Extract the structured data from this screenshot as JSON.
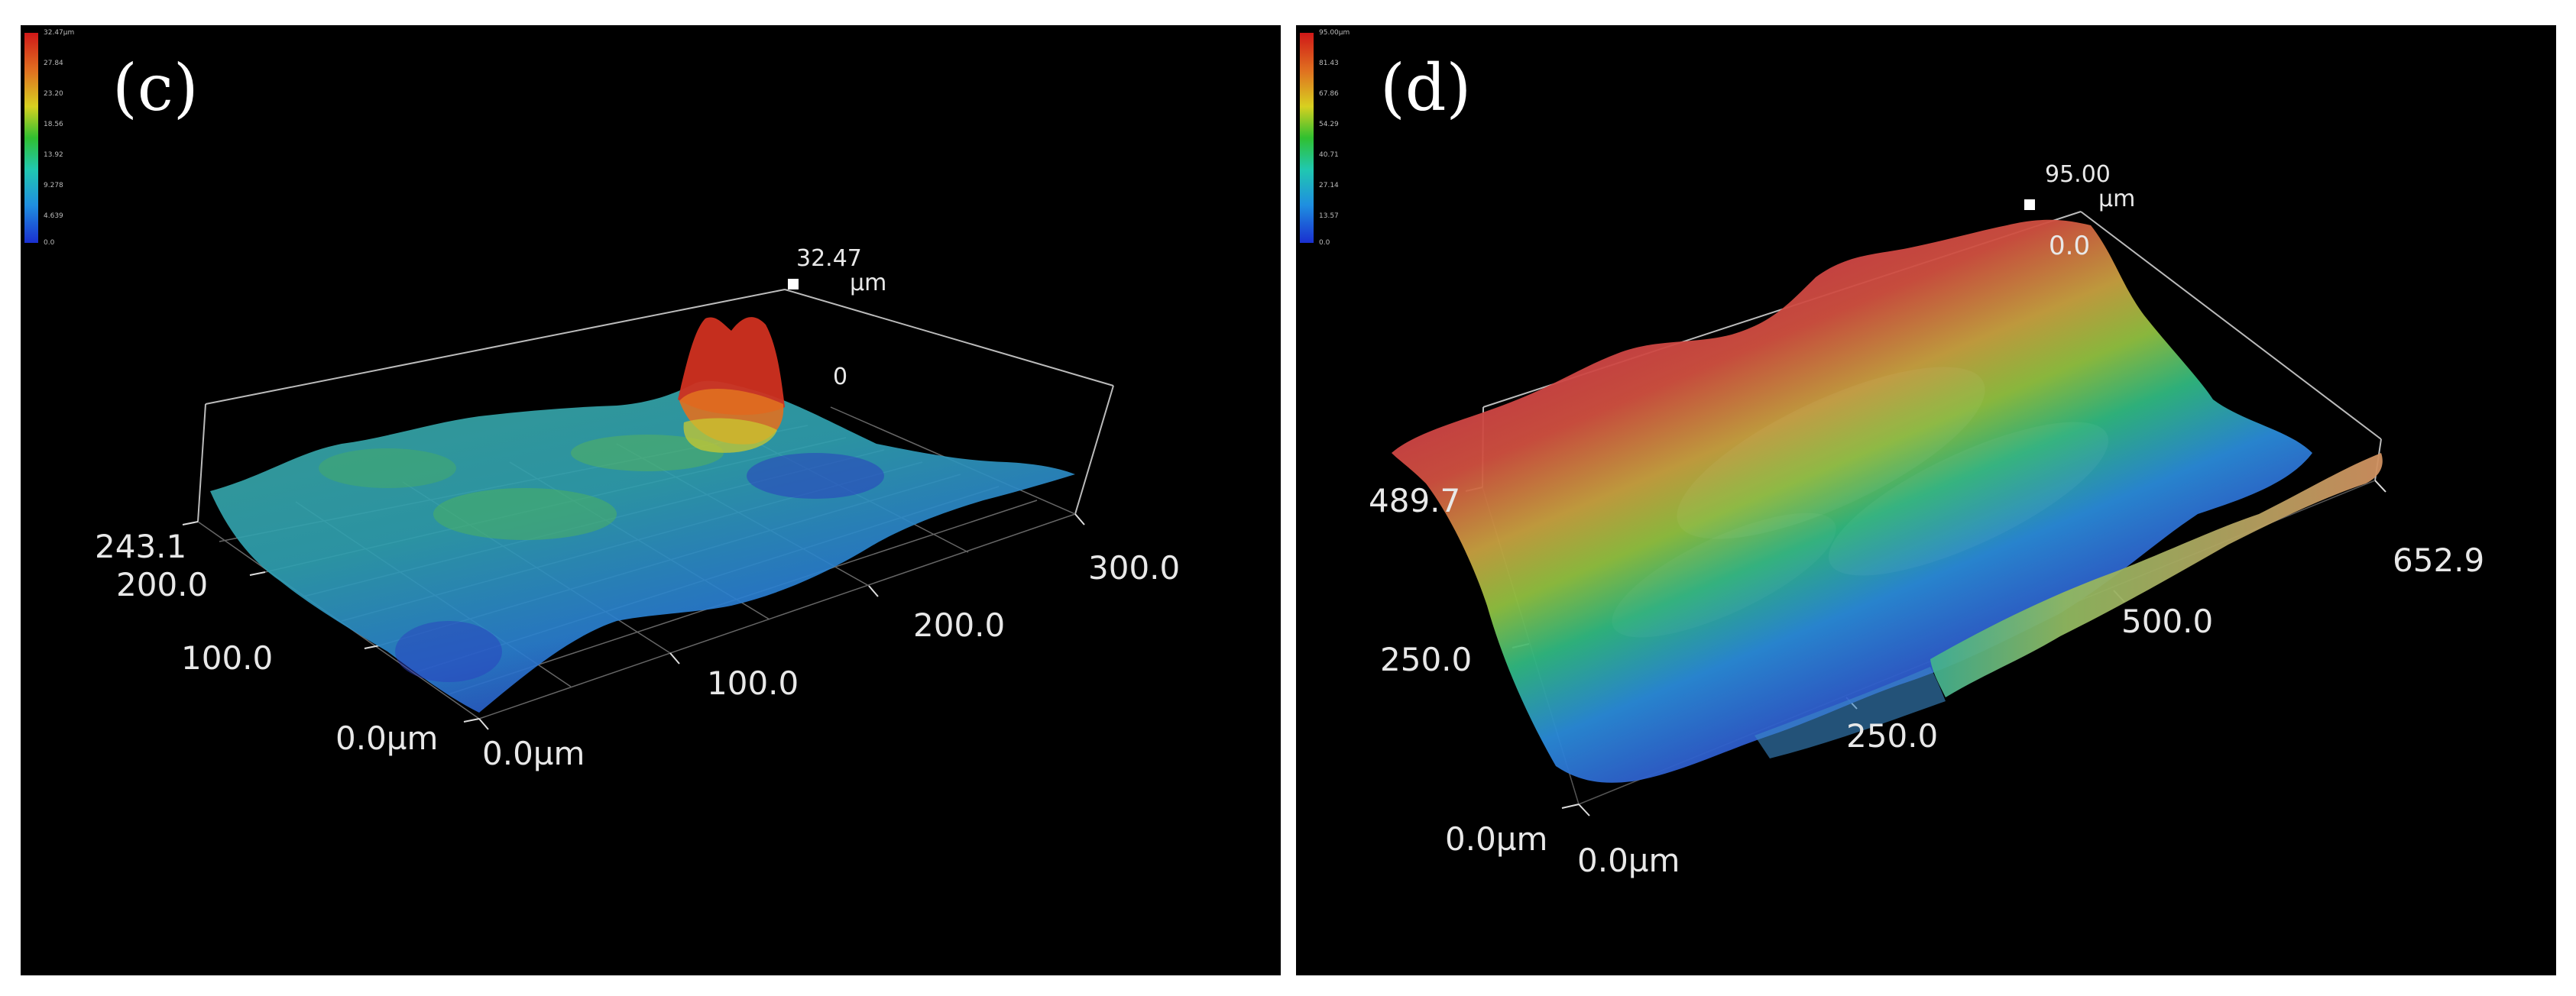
{
  "panels": {
    "c": {
      "label": "(c)",
      "colorbar_ticks": [
        "32.47µm",
        "27.84",
        "23.20",
        "18.56",
        "13.92",
        "9.278",
        "4.639",
        "0.0"
      ],
      "z_max": "32.47",
      "z_unit": "µm",
      "z_partial": "0",
      "y_labels": [
        "243.1",
        "200.0",
        "100.0",
        "0.0µm"
      ],
      "x_labels": [
        "0.0µm",
        "100.0",
        "200.0",
        "300.0"
      ]
    },
    "d": {
      "label": "(d)",
      "colorbar_ticks": [
        "95.00µm",
        "81.43",
        "67.86",
        "54.29",
        "40.71",
        "27.14",
        "13.57",
        "0.0"
      ],
      "z_max": "95.00",
      "z_unit": "µm",
      "z_min": "0.0",
      "y_labels": [
        "489.7",
        "250.0",
        "0.0µm"
      ],
      "x_labels": [
        "0.0µm",
        "250.0",
        "500.0",
        "652.9"
      ]
    }
  },
  "colors": {
    "colormap": [
      "#1a2fd0",
      "#1f8fe0",
      "#20c8b0",
      "#30c030",
      "#d8d020",
      "#e07020",
      "#d01818"
    ],
    "background": "#000000"
  }
}
